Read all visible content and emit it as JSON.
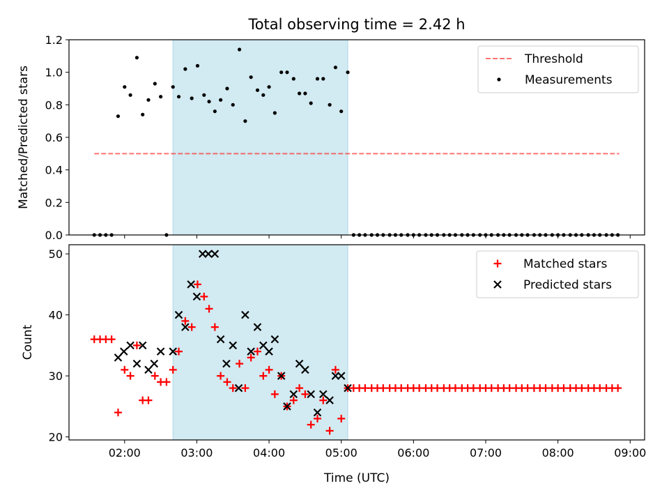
{
  "chart_data": {
    "title": "Total observing time = 2.42 h",
    "xlabel": "Time (UTC)",
    "x_ticks": [
      "02:00",
      "03:00",
      "04:00",
      "05:00",
      "06:00",
      "07:00",
      "08:00",
      "09:00"
    ],
    "x_tick_hours": [
      2,
      3,
      4,
      5,
      6,
      7,
      8,
      9
    ],
    "xlim": [
      1.23,
      9.2
    ],
    "shade_span": [
      2.67,
      5.09
    ],
    "colors": {
      "shade": "#add8e6",
      "threshold": "#ff0000",
      "measurements": "#000000",
      "matched": "#ff0000",
      "predicted": "#000000"
    },
    "panels": [
      {
        "type": "scatter",
        "ylabel": "Matched/Predicted stars",
        "ylim": [
          0,
          1.2
        ],
        "y_ticks": [
          "0.0",
          "0.2",
          "0.4",
          "0.6",
          "0.8",
          "1.0",
          "1.2"
        ],
        "y_tick_values": [
          0,
          0.2,
          0.4,
          0.6,
          0.8,
          1.0,
          1.2
        ],
        "legend": {
          "position": "upper right",
          "entries": [
            {
              "label": "Threshold",
              "marker": "dash"
            },
            {
              "label": "Measurements",
              "marker": "dot"
            }
          ]
        },
        "series": [
          {
            "name": "Threshold",
            "type": "line",
            "style": "dashed",
            "x": [
              1.58,
              8.85
            ],
            "y": [
              0.5,
              0.5
            ]
          },
          {
            "name": "Measurements",
            "type": "scatter",
            "marker": "dot",
            "x": [
              1.58,
              1.66,
              1.74,
              1.82,
              1.91,
              2.0,
              2.08,
              2.17,
              2.25,
              2.33,
              2.42,
              2.5,
              2.58,
              2.67,
              2.75,
              2.84,
              2.93,
              3.01,
              3.1,
              3.17,
              3.25,
              3.33,
              3.42,
              3.5,
              3.59,
              3.67,
              3.75,
              3.84,
              3.92,
              4.0,
              4.08,
              4.17,
              4.25,
              4.34,
              4.42,
              4.5,
              4.58,
              4.67,
              4.75,
              4.84,
              4.92,
              5.0,
              5.09,
              5.17,
              5.25,
              5.33,
              5.42,
              5.5,
              5.58,
              5.67,
              5.75,
              5.83,
              5.92,
              6.0,
              6.08,
              6.17,
              6.25,
              6.33,
              6.42,
              6.5,
              6.58,
              6.67,
              6.75,
              6.83,
              6.92,
              7.0,
              7.08,
              7.17,
              7.25,
              7.33,
              7.42,
              7.5,
              7.58,
              7.67,
              7.75,
              7.83,
              7.92,
              8.0,
              8.08,
              8.17,
              8.25,
              8.33,
              8.42,
              8.5,
              8.58,
              8.67,
              8.75,
              8.83
            ],
            "y": [
              0,
              0,
              0,
              0,
              0.73,
              0.91,
              0.86,
              1.09,
              0.74,
              0.83,
              0.93,
              0.85,
              0,
              0.91,
              0.85,
              1.02,
              0.84,
              1.04,
              0.86,
              0.82,
              0.76,
              0.83,
              0.9,
              0.8,
              1.14,
              0.7,
              0.97,
              0.89,
              0.86,
              0.91,
              0.75,
              1.0,
              1.0,
              0.96,
              0.87,
              0.87,
              0.81,
              0.96,
              0.96,
              0.8,
              1.03,
              0.76,
              1.0,
              0,
              0,
              0,
              0,
              0,
              0,
              0,
              0,
              0,
              0,
              0,
              0,
              0,
              0,
              0,
              0,
              0,
              0,
              0,
              0,
              0,
              0,
              0,
              0,
              0,
              0,
              0,
              0,
              0,
              0,
              0,
              0,
              0,
              0,
              0,
              0,
              0,
              0,
              0,
              0,
              0,
              0,
              0,
              0,
              0
            ]
          }
        ]
      },
      {
        "type": "scatter",
        "ylabel": "Count",
        "ylim": [
          19.5,
          51.5
        ],
        "y_ticks": [
          "20",
          "30",
          "40",
          "50"
        ],
        "y_tick_values": [
          20,
          30,
          40,
          50
        ],
        "legend": {
          "position": "upper right",
          "entries": [
            {
              "label": "Matched stars",
              "marker": "plus"
            },
            {
              "label": "Predicted stars",
              "marker": "x"
            }
          ]
        },
        "series": [
          {
            "name": "Matched stars",
            "type": "scatter",
            "marker": "plus",
            "x": [
              1.58,
              1.66,
              1.74,
              1.82,
              1.91,
              2.0,
              2.08,
              2.17,
              2.25,
              2.33,
              2.42,
              2.5,
              2.58,
              2.67,
              2.75,
              2.84,
              2.93,
              3.01,
              3.1,
              3.17,
              3.25,
              3.33,
              3.42,
              3.5,
              3.59,
              3.67,
              3.75,
              3.84,
              3.92,
              4.0,
              4.08,
              4.17,
              4.25,
              4.34,
              4.42,
              4.5,
              4.58,
              4.67,
              4.75,
              4.84,
              4.92,
              5.0,
              5.09,
              5.17,
              5.25,
              5.33,
              5.42,
              5.5,
              5.58,
              5.67,
              5.75,
              5.83,
              5.92,
              6.0,
              6.08,
              6.17,
              6.25,
              6.33,
              6.42,
              6.5,
              6.58,
              6.67,
              6.75,
              6.83,
              6.92,
              7.0,
              7.08,
              7.17,
              7.25,
              7.33,
              7.42,
              7.5,
              7.58,
              7.67,
              7.75,
              7.83,
              7.92,
              8.0,
              8.08,
              8.17,
              8.25,
              8.33,
              8.42,
              8.5,
              8.58,
              8.67,
              8.75,
              8.83
            ],
            "y": [
              36,
              36,
              36,
              36,
              24,
              31,
              30,
              35,
              26,
              26,
              30,
              29,
              29,
              31,
              34,
              39,
              38,
              45,
              43,
              41,
              38,
              30,
              29,
              28,
              32,
              28,
              33,
              34,
              30,
              31,
              27,
              30,
              25,
              26,
              28,
              27,
              22,
              23,
              26,
              21,
              31,
              23,
              28,
              28,
              28,
              28,
              28,
              28,
              28,
              28,
              28,
              28,
              28,
              28,
              28,
              28,
              28,
              28,
              28,
              28,
              28,
              28,
              28,
              28,
              28,
              28,
              28,
              28,
              28,
              28,
              28,
              28,
              28,
              28,
              28,
              28,
              28,
              28,
              28,
              28,
              28,
              28,
              28,
              28,
              28,
              28,
              28,
              28
            ]
          },
          {
            "name": "Predicted stars",
            "type": "scatter",
            "marker": "x",
            "x": [
              1.91,
              1.99,
              2.08,
              2.17,
              2.25,
              2.33,
              2.41,
              2.5,
              2.67,
              2.75,
              2.84,
              2.92,
              3.0,
              3.08,
              3.16,
              3.25,
              3.33,
              3.41,
              3.5,
              3.58,
              3.67,
              3.75,
              3.84,
              3.92,
              4.0,
              4.08,
              4.17,
              4.25,
              4.34,
              4.42,
              4.5,
              4.58,
              4.67,
              4.75,
              4.84,
              4.92,
              5.0,
              5.09
            ],
            "y": [
              33,
              34,
              35,
              32,
              35,
              31,
              32,
              34,
              34,
              40,
              38,
              45,
              43,
              50,
              50,
              50,
              36,
              32,
              35,
              28,
              40,
              34,
              38,
              35,
              34,
              36,
              30,
              25,
              27,
              32,
              31,
              27,
              24,
              27,
              26,
              30,
              30,
              28
            ]
          }
        ]
      }
    ]
  }
}
